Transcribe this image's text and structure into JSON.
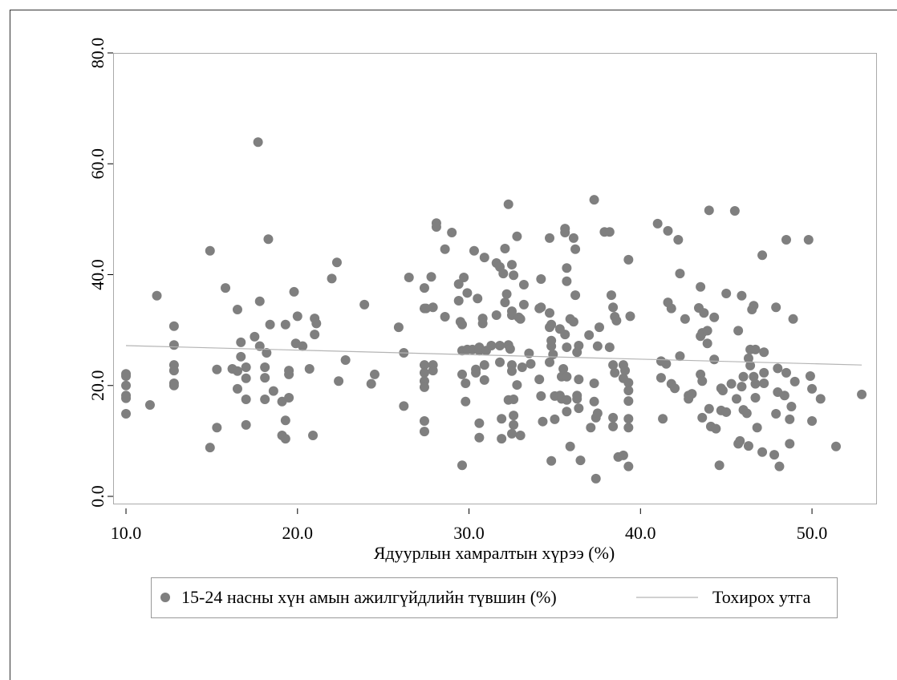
{
  "chart_data": {
    "type": "scatter",
    "x_label": "Ядуурлын хамралтын хүрээ (%)",
    "xlim": [
      9.25,
      53.74
    ],
    "ylim": [
      -1.3,
      80
    ],
    "xticks": [
      {
        "value": 10,
        "label": "10.0"
      },
      {
        "value": 20,
        "label": "20.0"
      },
      {
        "value": 30,
        "label": "30.0"
      },
      {
        "value": 40,
        "label": "40.0"
      },
      {
        "value": 50,
        "label": "50.0"
      }
    ],
    "yticks": [
      {
        "value": 0,
        "label": "0.0"
      },
      {
        "value": 20,
        "label": "20.0"
      },
      {
        "value": 40,
        "label": "40.0"
      },
      {
        "value": 60,
        "label": "60.0"
      },
      {
        "value": 80,
        "label": "80.0"
      }
    ],
    "series": [
      {
        "name": "15-24 насны хүн амын ажилгүйдлийн түвшин (%)",
        "type": "scatter",
        "color": "#7f7f7f",
        "x": [
          10.0,
          10.0,
          10.0,
          10.0,
          10.0,
          10.0,
          11.4,
          11.8,
          12.8,
          12.8,
          12.8,
          12.8,
          12.8,
          12.8,
          14.9,
          14.9,
          15.3,
          15.3,
          15.8,
          16.2,
          16.5,
          16.5,
          16.5,
          16.7,
          16.7,
          17.0,
          17.0,
          17.0,
          17.0,
          17.5,
          17.7,
          17.8,
          17.8,
          18.1,
          18.1,
          18.1,
          18.2,
          18.3,
          18.4,
          18.6,
          19.1,
          19.1,
          19.3,
          19.3,
          19.3,
          19.5,
          19.5,
          19.5,
          19.8,
          19.9,
          20.0,
          20.3,
          20.7,
          20.9,
          21.0,
          21.1,
          21.0,
          22.0,
          22.3,
          22.4,
          22.8,
          23.9,
          24.3,
          24.5,
          25.9,
          26.2,
          26.2,
          26.5,
          27.4,
          27.4,
          27.4,
          27.4,
          27.4,
          27.4,
          27.4,
          27.4,
          27.5,
          27.9,
          27.8,
          27.9,
          27.9,
          28.1,
          28.1,
          28.6,
          28.6,
          29.0,
          29.4,
          29.4,
          29.5,
          29.6,
          29.6,
          29.6,
          29.6,
          29.7,
          29.9,
          29.8,
          29.8,
          29.9,
          30.2,
          30.3,
          30.4,
          30.4,
          30.5,
          30.6,
          30.6,
          30.6,
          30.6,
          30.8,
          30.8,
          30.9,
          30.9,
          30.9,
          31.0,
          31.3,
          31.6,
          31.6,
          31.8,
          31.8,
          31.8,
          31.9,
          31.9,
          32.0,
          32.1,
          32.1,
          32.2,
          32.3,
          32.3,
          32.4,
          32.3,
          32.6,
          32.5,
          32.5,
          32.5,
          32.6,
          32.5,
          32.5,
          32.6,
          32.6,
          32.5,
          32.8,
          32.9,
          33.0,
          32.8,
          33.0,
          33.2,
          33.2,
          33.1,
          33.5,
          33.6,
          34.1,
          34.2,
          34.2,
          34.1,
          34.2,
          34.3,
          34.7,
          34.7,
          34.7,
          34.8,
          34.8,
          34.8,
          34.7,
          34.9,
          34.8,
          35.0,
          35.0,
          35.3,
          35.3,
          35.4,
          35.5,
          35.4,
          35.6,
          35.6,
          35.7,
          35.7,
          35.6,
          35.7,
          35.7,
          35.7,
          35.7,
          35.9,
          35.9,
          36.1,
          36.1,
          36.2,
          36.2,
          36.3,
          36.4,
          36.3,
          36.3,
          36.4,
          36.4,
          36.5,
          37.1,
          37.0,
          37.3,
          37.3,
          37.3,
          37.4,
          37.5,
          37.4,
          37.5,
          37.6,
          37.9,
          38.2,
          38.2,
          38.3,
          38.4,
          38.5,
          38.6,
          38.4,
          38.5,
          38.4,
          38.4,
          38.7,
          39.0,
          39.0,
          39.1,
          39.0,
          39.3,
          39.4,
          39.3,
          39.3,
          39.3,
          39.3,
          39.3,
          39.3,
          41.0,
          41.2,
          41.2,
          41.3,
          41.5,
          41.6,
          41.6,
          41.8,
          41.8,
          42.0,
          42.2,
          42.3,
          42.3,
          42.6,
          42.8,
          42.8,
          43.0,
          43.4,
          43.5,
          43.5,
          43.6,
          43.5,
          43.6,
          43.6,
          43.7,
          43.9,
          44.0,
          44.0,
          44.1,
          44.4,
          43.9,
          44.3,
          44.3,
          44.7,
          44.6,
          44.7,
          44.8,
          45.0,
          45.0,
          45.3,
          45.5,
          45.6,
          45.7,
          45.7,
          45.8,
          45.9,
          45.9,
          46.0,
          46.0,
          46.2,
          46.3,
          46.4,
          46.3,
          46.4,
          46.5,
          46.6,
          46.6,
          46.7,
          46.7,
          46.7,
          46.8,
          47.1,
          47.1,
          47.2,
          47.2,
          47.2,
          47.8,
          47.9,
          47.9,
          48.0,
          48.0,
          48.1,
          48.4,
          48.5,
          48.5,
          48.7,
          48.7,
          48.8,
          48.9,
          49.0,
          49.8,
          49.9,
          50.0,
          50.0,
          50.5,
          51.4,
          52.9
        ],
        "values": [
          22.1,
          21.7,
          20.0,
          18.2,
          17.7,
          14.9,
          16.5,
          36.2,
          30.7,
          27.3,
          23.7,
          22.7,
          20.4,
          20.0,
          44.3,
          8.8,
          22.9,
          12.4,
          37.6,
          23.0,
          22.6,
          33.7,
          19.4,
          27.8,
          25.2,
          23.3,
          21.3,
          17.5,
          12.9,
          28.8,
          63.9,
          35.2,
          27.1,
          23.3,
          21.4,
          17.5,
          25.9,
          46.4,
          31.0,
          19.0,
          17.1,
          11.0,
          31.0,
          13.7,
          10.4,
          22.7,
          22.0,
          17.8,
          36.9,
          27.6,
          32.5,
          27.1,
          23.0,
          11.0,
          32.1,
          31.2,
          29.2,
          39.3,
          42.2,
          20.8,
          24.6,
          34.6,
          20.3,
          22.0,
          30.5,
          16.3,
          25.9,
          39.5,
          37.6,
          33.9,
          23.7,
          22.3,
          20.8,
          19.7,
          13.6,
          11.7,
          33.9,
          34.1,
          39.6,
          23.7,
          22.7,
          49.3,
          48.6,
          44.6,
          32.4,
          47.6,
          38.3,
          35.3,
          31.5,
          31.0,
          26.3,
          22.0,
          5.6,
          39.5,
          36.7,
          20.4,
          17.1,
          26.5,
          26.5,
          44.3,
          22.9,
          22.3,
          35.7,
          26.9,
          26.3,
          13.2,
          10.6,
          32.1,
          31.2,
          43.1,
          23.7,
          21.0,
          26.3,
          27.2,
          32.7,
          42.1,
          41.4,
          27.2,
          24.2,
          14.0,
          10.4,
          40.2,
          35.0,
          44.7,
          36.5,
          52.7,
          27.3,
          26.6,
          17.4,
          17.5,
          33.4,
          32.7,
          41.8,
          39.9,
          23.7,
          22.6,
          14.6,
          12.9,
          11.3,
          46.9,
          32.3,
          32.0,
          20.1,
          11.0,
          38.2,
          34.6,
          23.3,
          25.8,
          23.9,
          33.9,
          34.1,
          39.2,
          21.1,
          18.1,
          13.5,
          33.1,
          46.6,
          30.5,
          31.0,
          28.1,
          27.1,
          24.2,
          25.6,
          6.4,
          18.1,
          13.9,
          30.2,
          18.2,
          17.6,
          23.0,
          21.6,
          48.3,
          47.6,
          41.2,
          38.8,
          29.2,
          26.9,
          21.6,
          17.4,
          15.3,
          9.0,
          32.0,
          31.5,
          46.6,
          44.6,
          36.3,
          26.0,
          27.2,
          18.2,
          17.6,
          21.1,
          15.9,
          6.5,
          12.4,
          29.1,
          53.5,
          20.4,
          17.1,
          14.2,
          15.0,
          3.2,
          27.1,
          30.5,
          47.7,
          47.7,
          26.9,
          36.3,
          34.1,
          32.4,
          31.7,
          23.7,
          22.3,
          14.2,
          12.6,
          7.1,
          7.4,
          23.7,
          22.7,
          21.3,
          42.7,
          32.5,
          17.2,
          14.0,
          12.4,
          20.5,
          19.1,
          5.4,
          49.2,
          24.4,
          21.4,
          14.0,
          23.9,
          47.9,
          35.0,
          33.9,
          20.3,
          19.5,
          46.3,
          40.2,
          25.3,
          32.0,
          18.2,
          17.6,
          18.5,
          34.0,
          37.8,
          28.9,
          29.5,
          22.0,
          14.2,
          20.8,
          33.1,
          29.9,
          51.6,
          15.8,
          12.6,
          12.2,
          27.6,
          24.7,
          32.3,
          15.5,
          5.6,
          19.5,
          19.1,
          15.2,
          36.6,
          20.3,
          51.5,
          17.6,
          29.9,
          9.5,
          10.0,
          36.2,
          19.8,
          15.6,
          21.6,
          15.0,
          24.9,
          23.6,
          9.1,
          26.5,
          33.7,
          34.4,
          21.6,
          20.3,
          26.5,
          17.8,
          12.4,
          8.0,
          43.5,
          26.0,
          22.3,
          20.4,
          7.5,
          34.1,
          14.9,
          23.1,
          18.8,
          5.4,
          18.2,
          22.3,
          46.3,
          9.5,
          13.9,
          16.2,
          32.0,
          20.7,
          46.3,
          21.7,
          19.4,
          13.6,
          17.6,
          9.0,
          18.4
        ]
      },
      {
        "name": "Тохирох утга",
        "type": "line",
        "color": "#b4b4b4",
        "x": [
          10.0,
          52.9
        ],
        "values": [
          27.2,
          23.7
        ]
      }
    ]
  }
}
